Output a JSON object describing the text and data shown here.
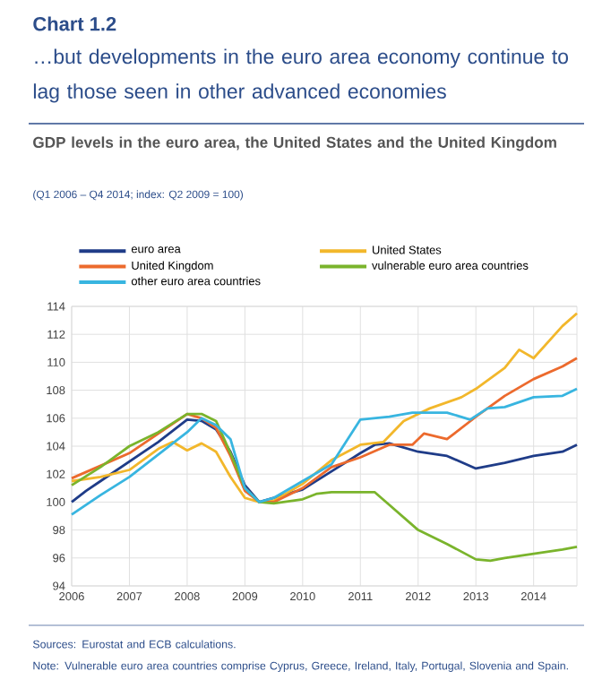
{
  "chart_data": {
    "type": "line",
    "title": "Chart 1.2",
    "subtitle": "…but developments in the euro area economy continue to lag those seen in other advanced economies",
    "annotations": [
      "GDP levels in the euro area, the United States and the United Kingdom",
      "(Q1 2006 – Q4 2014; index: Q2 2009 = 100)",
      "Sources: Eurostat and ECB calculations.",
      "Note: Vulnerable euro area countries comprise Cyprus, Greece, Ireland, Italy, Portugal, Slovenia and Spain."
    ],
    "series": [
      {
        "name": "euro area",
        "color": "#1f3c88",
        "x": [
          2006,
          2006.25,
          2006.5,
          2007,
          2007.5,
          2008,
          2008.25,
          2008.5,
          2008.75,
          2009,
          2009.25,
          2010,
          2010.5,
          2011,
          2011.25,
          2011.5,
          2011.75,
          2012,
          2012.5,
          2013,
          2013.5,
          2014,
          2014.5,
          2014.75
        ],
        "values": [
          100.0,
          100.8,
          101.5,
          102.9,
          104.3,
          105.9,
          105.8,
          105.2,
          103.6,
          101.2,
          100.0,
          100.9,
          102.2,
          103.5,
          104.1,
          104.2,
          103.9,
          103.6,
          103.3,
          102.4,
          102.8,
          103.3,
          103.6,
          104.1
        ]
      },
      {
        "name": "United States",
        "color": "#f2b72b",
        "x": [
          2006,
          2006.5,
          2007,
          2007.5,
          2007.75,
          2008,
          2008.25,
          2008.5,
          2008.75,
          2009,
          2009.25,
          2009.5,
          2010,
          2010.5,
          2011,
          2011.4,
          2011.75,
          2012.2,
          2012.75,
          2013,
          2013.5,
          2013.75,
          2014,
          2014.5,
          2014.75
        ],
        "values": [
          101.5,
          101.8,
          102.3,
          103.8,
          104.3,
          103.7,
          104.2,
          103.6,
          101.8,
          100.3,
          100.0,
          100.1,
          101.3,
          103.0,
          104.1,
          104.3,
          105.8,
          106.7,
          107.5,
          108.1,
          109.6,
          110.9,
          110.3,
          112.6,
          113.5
        ]
      },
      {
        "name": "United Kingdom",
        "color": "#ec6a2d",
        "x": [
          2006,
          2007,
          2008,
          2008.25,
          2008.5,
          2008.75,
          2009,
          2009.25,
          2009.5,
          2010,
          2010.5,
          2011,
          2011.5,
          2011.9,
          2012.1,
          2012.5,
          2013,
          2013.5,
          2014,
          2014.5,
          2014.75
        ],
        "values": [
          101.7,
          103.5,
          106.3,
          106.0,
          105.3,
          103.3,
          100.8,
          100.0,
          100.0,
          101.0,
          102.5,
          103.2,
          104.1,
          104.1,
          104.9,
          104.5,
          106.1,
          107.6,
          108.8,
          109.7,
          110.3
        ]
      },
      {
        "name": "vulnerable euro area countries",
        "color": "#7ab42c",
        "x": [
          2006,
          2006.5,
          2007,
          2007.5,
          2008,
          2008.25,
          2008.5,
          2008.75,
          2009,
          2009.25,
          2009.5,
          2010,
          2010.25,
          2010.5,
          2011,
          2011.25,
          2011.5,
          2012,
          2012.5,
          2013,
          2013.25,
          2013.5,
          2014,
          2014.5,
          2014.75
        ],
        "values": [
          101.2,
          102.5,
          104.0,
          105.0,
          106.3,
          106.3,
          105.8,
          103.5,
          101.0,
          100.0,
          99.9,
          100.2,
          100.6,
          100.7,
          100.7,
          100.7,
          99.8,
          98.0,
          97.0,
          95.9,
          95.8,
          96.0,
          96.3,
          96.6,
          96.8
        ]
      },
      {
        "name": "other euro area countries",
        "color": "#38b5e0",
        "x": [
          2006,
          2006.5,
          2007,
          2007.5,
          2008,
          2008.25,
          2008.5,
          2008.75,
          2009,
          2009.25,
          2009.5,
          2010,
          2010.5,
          2010.75,
          2011,
          2011.5,
          2011.9,
          2012.5,
          2012.9,
          2013.2,
          2013.5,
          2014,
          2014.5,
          2014.75
        ],
        "values": [
          99.1,
          100.5,
          101.8,
          103.4,
          105.0,
          106.0,
          105.5,
          104.5,
          101.0,
          100.0,
          100.3,
          101.5,
          102.7,
          104.3,
          105.9,
          106.1,
          106.4,
          106.4,
          105.9,
          106.7,
          106.8,
          107.5,
          107.6,
          108.1
        ]
      }
    ],
    "xlim": [
      2006,
      2014.75
    ],
    "xticks": [
      2006,
      2007,
      2008,
      2009,
      2010,
      2011,
      2012,
      2013,
      2014
    ],
    "ylim": [
      94,
      114
    ],
    "yticks": [
      94,
      96,
      98,
      100,
      102,
      104,
      106,
      108,
      110,
      112,
      114
    ],
    "grid": true,
    "legend": "top"
  }
}
